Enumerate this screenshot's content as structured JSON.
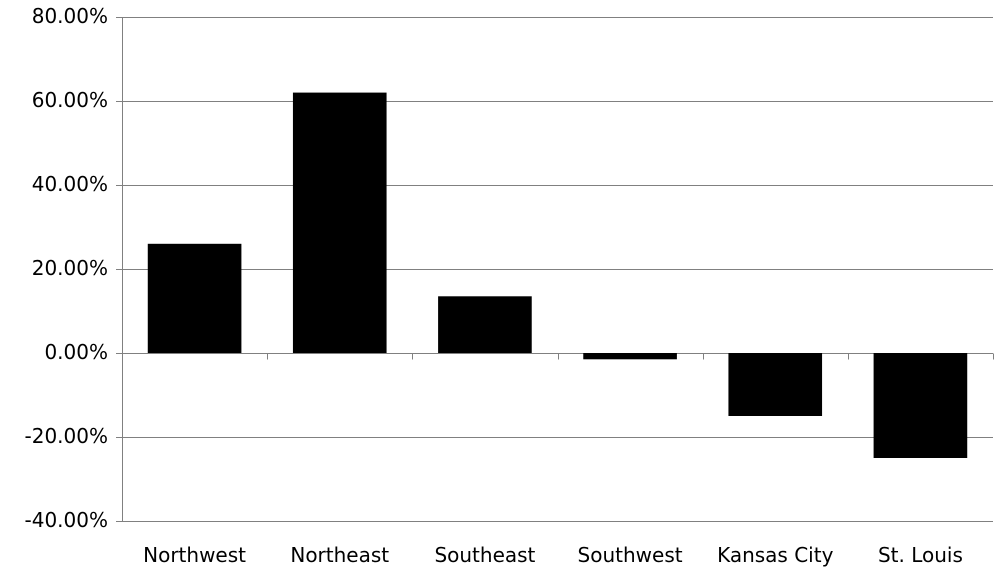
{
  "chart_data": {
    "type": "bar",
    "categories": [
      "Northwest",
      "Northeast",
      "Southeast",
      "Southwest",
      "Kansas City",
      "St. Louis"
    ],
    "values": [
      26.0,
      62.0,
      13.5,
      -1.5,
      -15.0,
      -25.0
    ],
    "ylim": [
      -40,
      80
    ],
    "yticks": [
      -40,
      -20,
      0,
      20,
      40,
      60,
      80
    ],
    "ytick_labels": [
      "-40.00%",
      "-20.00%",
      "0.00%",
      "20.00%",
      "40.00%",
      "60.00%",
      "80.00%"
    ],
    "grid": true,
    "bar_color": "#000000",
    "grid_color": "#808080"
  }
}
